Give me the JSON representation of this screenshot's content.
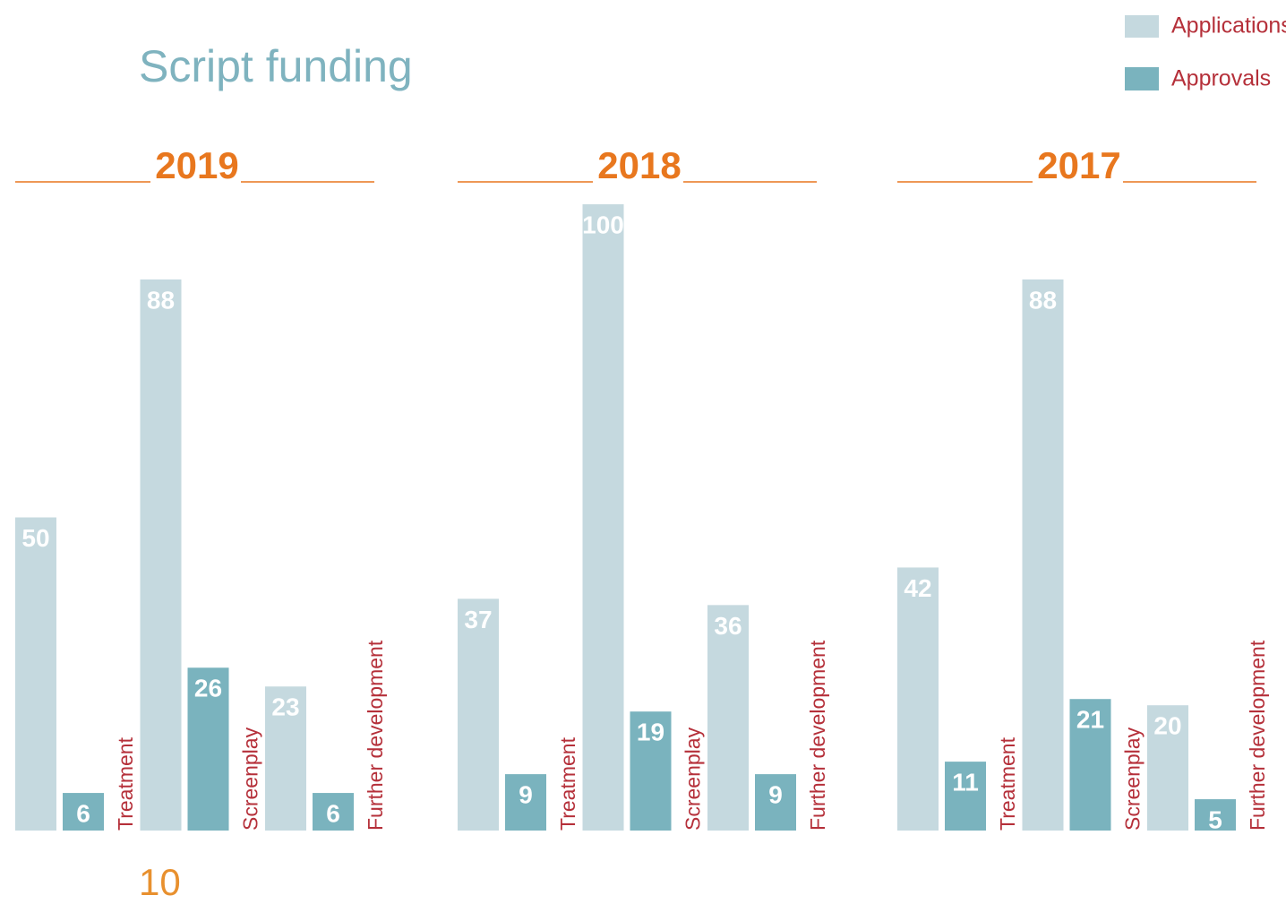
{
  "title": "Script funding",
  "page_number": 10,
  "chart_data": [
    {
      "type": "bar",
      "title": "2019",
      "categories": [
        "Treatment",
        "Screenplay",
        "Further development"
      ],
      "series": [
        {
          "name": "Applications",
          "color": "#c5d9df",
          "values": [
            50,
            88,
            23
          ]
        },
        {
          "name": "Approvals",
          "color": "#7ab3be",
          "values": [
            6,
            26,
            6
          ]
        }
      ],
      "ylim": [
        0,
        100
      ]
    },
    {
      "type": "bar",
      "title": "2018",
      "categories": [
        "Treatment",
        "Screenplay",
        "Further development"
      ],
      "series": [
        {
          "name": "Applications",
          "color": "#c5d9df",
          "values": [
            37,
            100,
            36
          ]
        },
        {
          "name": "Approvals",
          "color": "#7ab3be",
          "values": [
            9,
            19,
            9
          ]
        }
      ],
      "ylim": [
        0,
        100
      ]
    },
    {
      "type": "bar",
      "title": "2017",
      "categories": [
        "Treatment",
        "Screenplay",
        "Further development"
      ],
      "series": [
        {
          "name": "Applications",
          "color": "#c5d9df",
          "values": [
            42,
            88,
            20
          ]
        },
        {
          "name": "Approvals",
          "color": "#7ab3be",
          "values": [
            11,
            21,
            5
          ]
        }
      ],
      "ylim": [
        0,
        100
      ]
    }
  ]
}
